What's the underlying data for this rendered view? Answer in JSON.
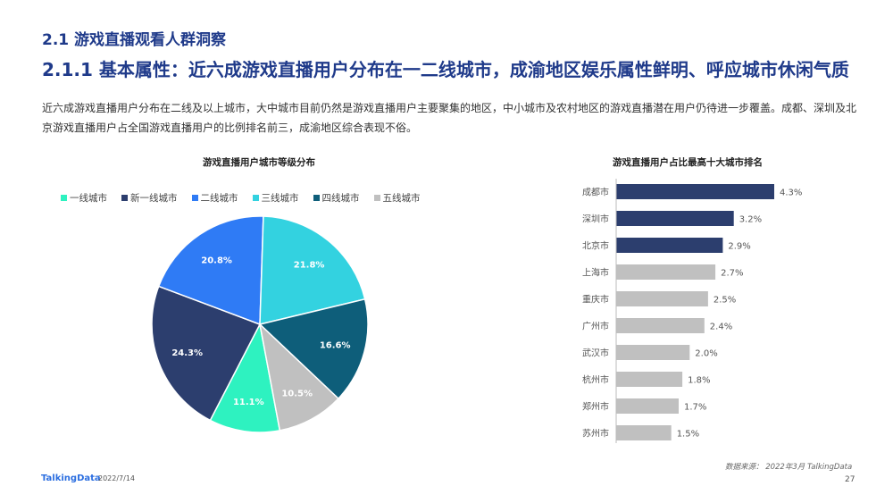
{
  "header": {
    "section_title": "2.1 游戏直播观看人群洞察",
    "main_title": "2.1.1 基本属性：近六成游戏直播用户分布在一二线城市，成渝地区娱乐属性鲜明、呼应城市休闲气质"
  },
  "intro": "近六成游戏直播用户分布在二线及以上城市，大中城市目前仍然是游戏直播用户主要聚集的地区，中小城市及农村地区的游戏直播潜在用户仍待进一步覆盖。成都、深圳及北京游戏直播用户占全国游戏直播用户的比例排名前三，成渝地区综合表现不俗。",
  "chart_data": [
    {
      "type": "pie",
      "title": "游戏直播用户城市等级分布",
      "unit": "%",
      "slices": [
        {
          "label": "一线城市",
          "value": 11.1,
          "color": "#2ef2c0",
          "value_text": "11.1%"
        },
        {
          "label": "新一线城市",
          "value": 24.3,
          "color": "#2c3e6e",
          "value_text": "24.3%"
        },
        {
          "label": "二线城市",
          "value": 20.8,
          "color": "#2f7bf5",
          "value_text": "20.8%"
        },
        {
          "label": "三线城市",
          "value": 21.8,
          "color": "#33d2e0",
          "value_text": "21.8%"
        },
        {
          "label": "四线城市",
          "value": 16.6,
          "color": "#0e5e7a",
          "value_text": "16.6%"
        },
        {
          "label": "五线城市",
          "value": 10.5,
          "color": "#c0c0c0",
          "value_text": "10.5%"
        }
      ],
      "legend_position": "top"
    },
    {
      "type": "bar",
      "orientation": "horizontal",
      "title": "游戏直播用户占比最高十大城市排名",
      "categories": [
        "成都市",
        "深圳市",
        "北京市",
        "上海市",
        "重庆市",
        "广州市",
        "武汉市",
        "杭州市",
        "郑州市",
        "苏州市"
      ],
      "values": [
        4.3,
        3.2,
        2.9,
        2.7,
        2.5,
        2.4,
        2.0,
        1.8,
        1.7,
        1.5
      ],
      "value_labels": [
        "4.3%",
        "3.2%",
        "2.9%",
        "2.7%",
        "2.5%",
        "2.4%",
        "2.0%",
        "1.8%",
        "1.7%",
        "1.5%"
      ],
      "highlight_count": 3,
      "colors": {
        "highlight": "#2c3e6e",
        "normal": "#c0c0c0"
      },
      "xlim": [
        0,
        4.3
      ]
    }
  ],
  "footer": {
    "logo": "TalkingData",
    "date": "2022/7/14",
    "source": "数据来源： 2022年3月 TalkingData",
    "page": "27"
  }
}
